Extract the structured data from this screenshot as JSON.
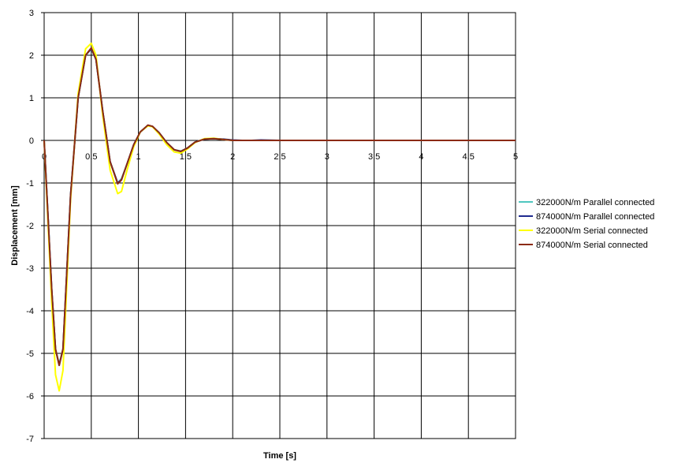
{
  "chart_data": {
    "type": "line",
    "title": "",
    "xlabel": "Time [s]",
    "ylabel": "Displacement [mm]",
    "xlim": [
      0,
      5
    ],
    "ylim": [
      -7,
      3
    ],
    "x_ticks": [
      "0",
      "0.5",
      "1",
      "1.5",
      "2",
      "2.5",
      "3",
      "3.5",
      "4",
      "4.5",
      "5"
    ],
    "y_ticks": [
      "3",
      "2",
      "1",
      "0",
      "-1",
      "-2",
      "-3",
      "-4",
      "-5",
      "-6",
      "-7"
    ],
    "grid": true,
    "legend_position": "right",
    "series": [
      {
        "name": "322000N/m Parallel connected",
        "color": "#4fc7c0",
        "x": [
          0,
          0.08,
          0.12,
          0.16,
          0.2,
          0.28,
          0.36,
          0.44,
          0.5,
          0.55,
          0.62,
          0.7,
          0.78,
          0.82,
          0.88,
          0.95,
          1.02,
          1.1,
          1.15,
          1.22,
          1.3,
          1.38,
          1.45,
          1.52,
          1.6,
          1.7,
          1.8,
          1.9,
          2.0,
          2.1,
          2.2,
          2.3,
          2.5,
          3.0,
          4.0,
          5.0
        ],
        "y": [
          0,
          -3.5,
          -4.9,
          -5.25,
          -4.9,
          -1.3,
          1.0,
          2.0,
          2.15,
          1.9,
          0.7,
          -0.5,
          -1.0,
          -0.9,
          -0.55,
          -0.1,
          0.2,
          0.35,
          0.32,
          0.18,
          -0.05,
          -0.22,
          -0.25,
          -0.18,
          -0.04,
          0.03,
          0.04,
          0.02,
          0.0,
          0.0,
          0.0,
          0.0,
          0.0,
          0.0,
          0.0,
          0.0
        ]
      },
      {
        "name": "874000N/m Parallel connected",
        "color": "#1f2b8f",
        "x": [
          0,
          0.08,
          0.12,
          0.16,
          0.2,
          0.28,
          0.36,
          0.44,
          0.5,
          0.55,
          0.62,
          0.7,
          0.78,
          0.82,
          0.88,
          0.95,
          1.02,
          1.1,
          1.15,
          1.22,
          1.3,
          1.38,
          1.45,
          1.52,
          1.6,
          1.7,
          1.8,
          1.9,
          2.0,
          2.1,
          2.2,
          2.3,
          2.5,
          3.0,
          4.0,
          5.0
        ],
        "y": [
          0,
          -3.5,
          -4.9,
          -5.28,
          -4.9,
          -1.3,
          1.0,
          2.0,
          2.15,
          1.9,
          0.7,
          -0.5,
          -1.0,
          -0.92,
          -0.55,
          -0.1,
          0.2,
          0.35,
          0.33,
          0.18,
          -0.05,
          -0.22,
          -0.26,
          -0.18,
          -0.04,
          0.03,
          0.04,
          0.03,
          0.01,
          0.0,
          0.0,
          0.01,
          0.0,
          0.0,
          0.0,
          0.0
        ]
      },
      {
        "name": "322000N/m Serial connected",
        "color": "#ffff00",
        "x": [
          0,
          0.08,
          0.12,
          0.16,
          0.2,
          0.28,
          0.36,
          0.44,
          0.5,
          0.55,
          0.62,
          0.7,
          0.78,
          0.82,
          0.88,
          0.95,
          1.02,
          1.1,
          1.15,
          1.22,
          1.3,
          1.38,
          1.45,
          1.52,
          1.6,
          1.7,
          1.8,
          1.9,
          2.0,
          2.1,
          2.2,
          2.3,
          2.5,
          3.0,
          4.0,
          5.0
        ],
        "y": [
          0,
          -3.8,
          -5.5,
          -5.88,
          -5.4,
          -1.4,
          1.1,
          2.15,
          2.28,
          2.0,
          0.6,
          -0.7,
          -1.25,
          -1.2,
          -0.7,
          -0.15,
          0.2,
          0.34,
          0.32,
          0.15,
          -0.1,
          -0.27,
          -0.3,
          -0.2,
          -0.05,
          0.04,
          0.05,
          0.02,
          0.0,
          0.0,
          0.0,
          0.0,
          0.0,
          0.0,
          0.0,
          0.0
        ]
      },
      {
        "name": "874000N/m Serial connected",
        "color": "#8b2a12",
        "x": [
          0,
          0.08,
          0.12,
          0.16,
          0.2,
          0.28,
          0.36,
          0.44,
          0.5,
          0.55,
          0.62,
          0.7,
          0.78,
          0.82,
          0.88,
          0.95,
          1.02,
          1.1,
          1.15,
          1.22,
          1.3,
          1.38,
          1.45,
          1.52,
          1.6,
          1.7,
          1.8,
          1.9,
          2.0,
          2.1,
          2.2,
          2.3,
          2.5,
          3.0,
          4.0,
          5.0
        ],
        "y": [
          0,
          -3.5,
          -4.9,
          -5.28,
          -4.9,
          -1.3,
          1.0,
          2.0,
          2.17,
          1.9,
          0.7,
          -0.5,
          -1.02,
          -0.93,
          -0.55,
          -0.1,
          0.2,
          0.36,
          0.33,
          0.18,
          -0.05,
          -0.22,
          -0.26,
          -0.18,
          -0.04,
          0.03,
          0.04,
          0.02,
          0.0,
          0.0,
          0.0,
          0.0,
          0.0,
          0.0,
          0.0,
          0.0
        ]
      }
    ]
  }
}
